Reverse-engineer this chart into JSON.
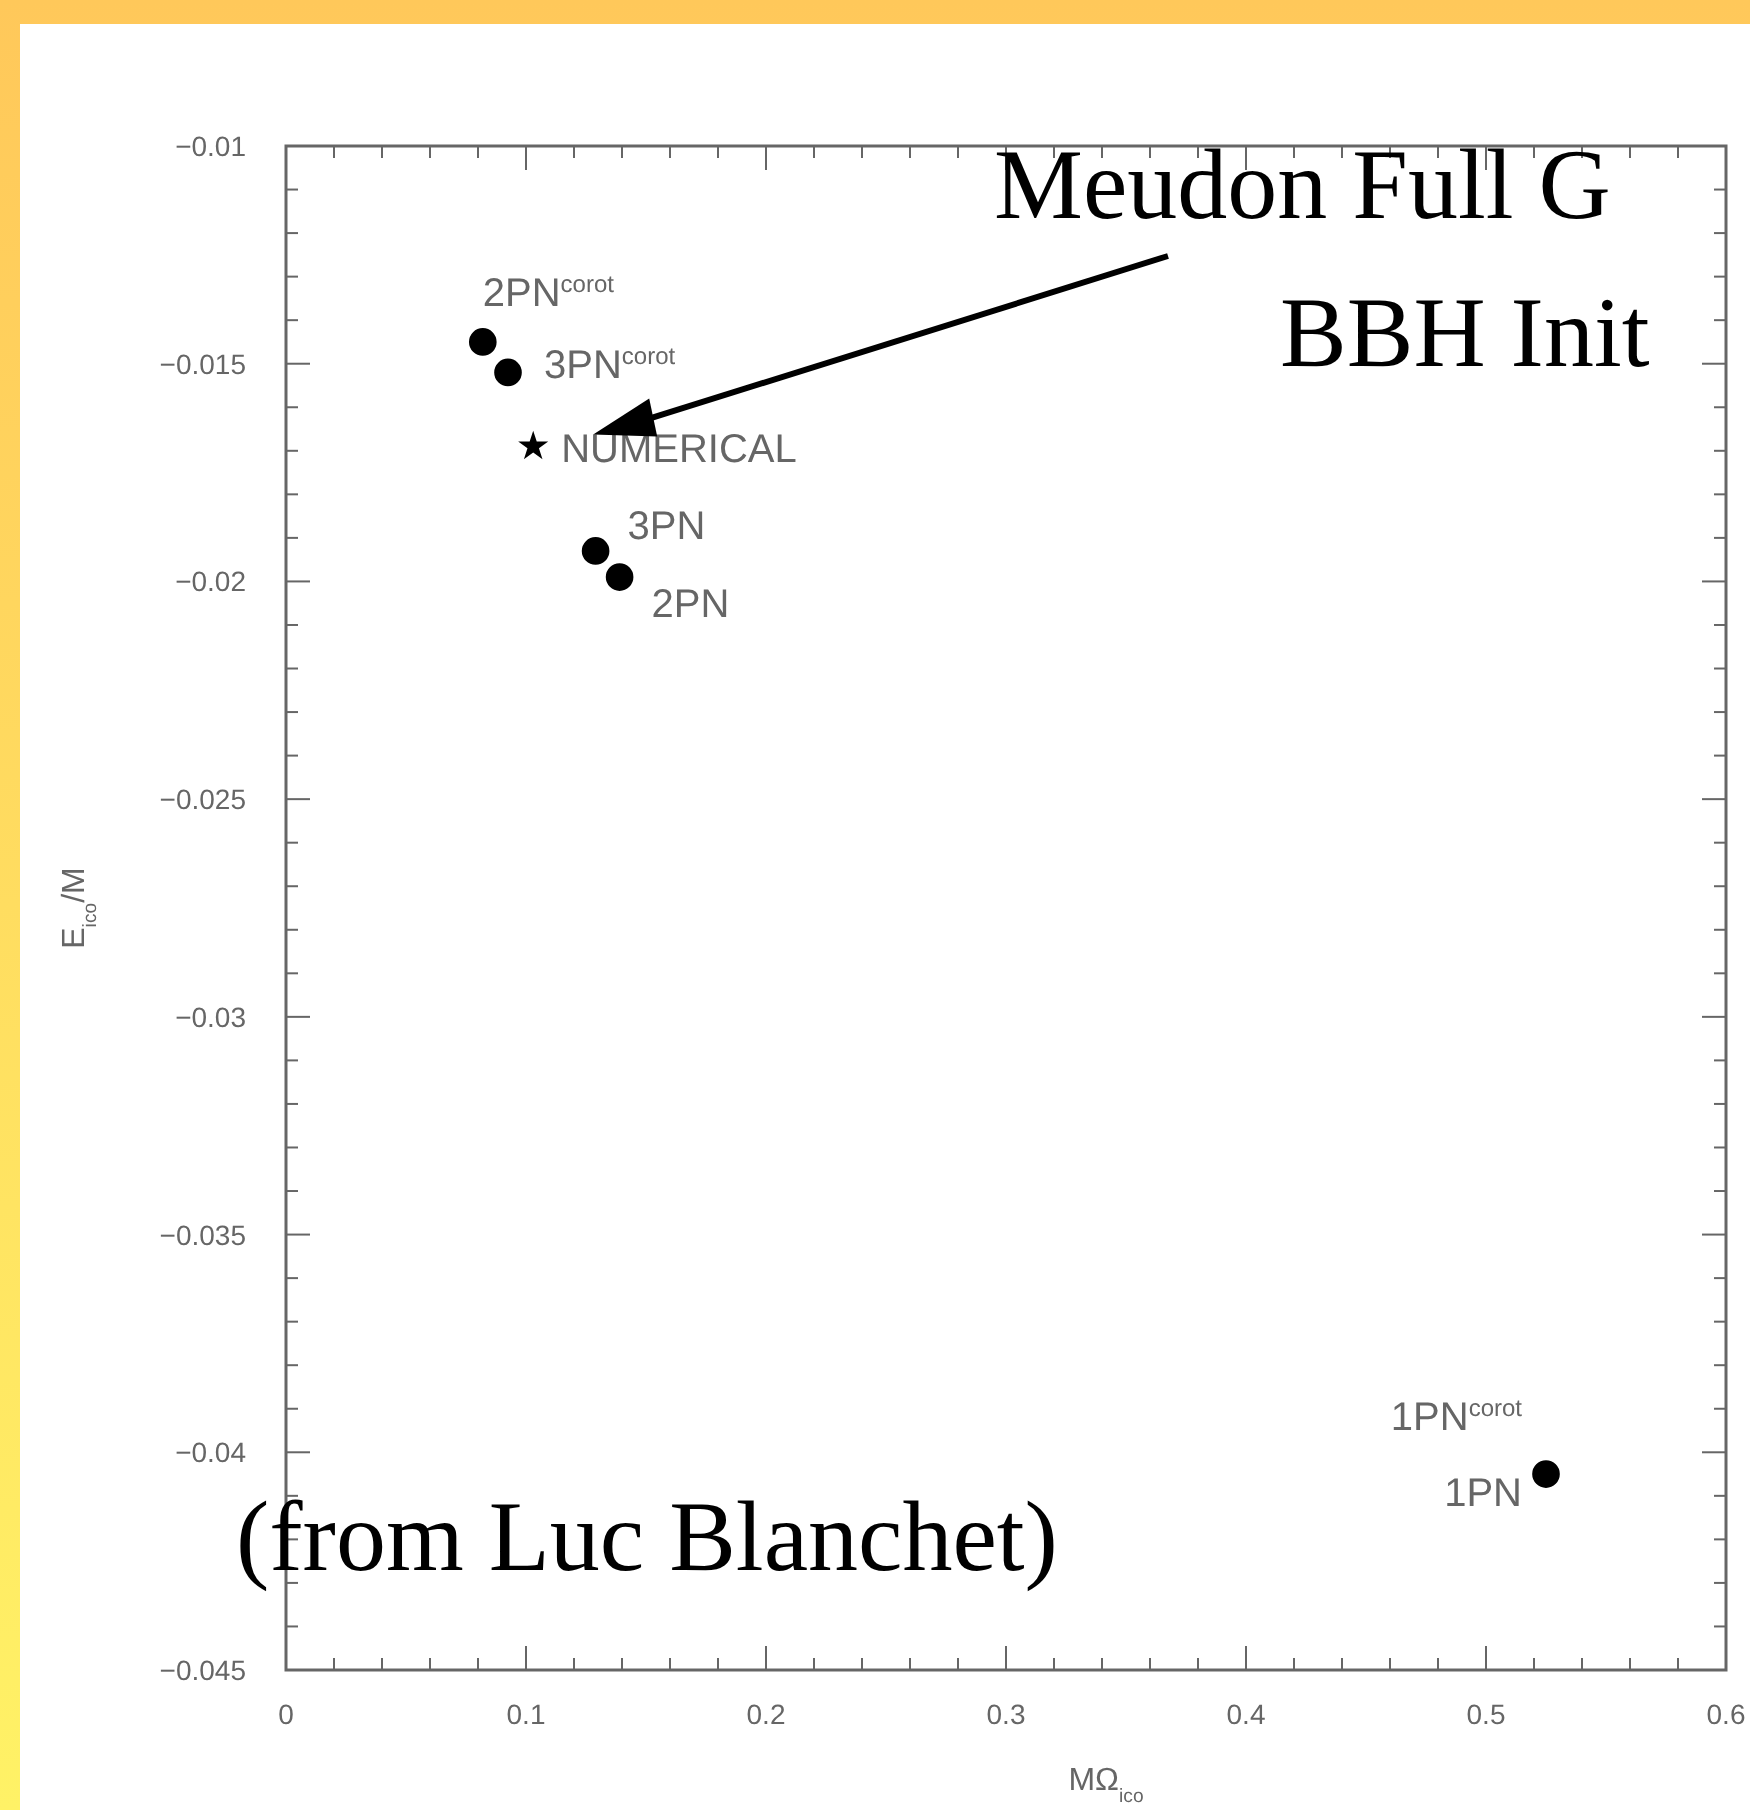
{
  "chart_data": {
    "type": "scatter",
    "xlabel": "MΩ$_{ico}$",
    "ylabel": "E$_{ico}$/M",
    "series": [
      {
        "marker": "circle",
        "color": "#000000",
        "x": [
          0.082,
          0.0925,
          0.129,
          0.139,
          0.525
        ],
        "values": [
          -0.0145,
          -0.0152,
          -0.0193,
          -0.0199,
          -0.0405
        ]
      },
      {
        "marker": "star",
        "color": "#000000",
        "x": [
          0.103
        ],
        "values": [
          -0.0169
        ]
      }
    ],
    "xlim": [
      0,
      0.6
    ],
    "xticks": [
      0,
      0.1,
      0.2,
      0.3,
      0.4,
      0.5,
      0.6
    ],
    "ylim": [
      -0.045,
      -0.01
    ],
    "yticks": [
      -0.045,
      -0.04,
      -0.035,
      -0.03,
      -0.025,
      -0.02,
      -0.015,
      -0.01
    ],
    "grid": false,
    "annotations": [
      {
        "text": "2PN$^{corot}$",
        "x": 0.082,
        "y": -0.0145
      },
      {
        "text": "3PN$^{corot}$",
        "x": 0.0925,
        "y": -0.0152
      },
      {
        "text": "3PN",
        "x": 0.129,
        "y": -0.0193
      },
      {
        "text": "2PN",
        "x": 0.139,
        "y": -0.0199
      },
      {
        "text": "1PN$^{corot}$",
        "x": 0.525,
        "y": -0.0405
      },
      {
        "text": "1PN",
        "x": 0.525,
        "y": -0.0405
      },
      {
        "text": "NUMERICAL",
        "x": 0.103,
        "y": -0.0169
      },
      "Meudon Full G",
      "BBH Init",
      "(from Luc Blanchet)"
    ]
  }
}
